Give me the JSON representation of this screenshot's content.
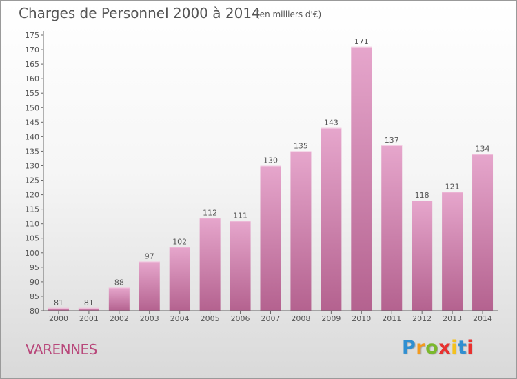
{
  "chart_data": {
    "type": "bar",
    "title": "Charges de Personnel 2000 à 2014",
    "subtitle": "(en milliers d'€)",
    "categories": [
      "2000",
      "2001",
      "2002",
      "2003",
      "2004",
      "2005",
      "2006",
      "2007",
      "2008",
      "2009",
      "2010",
      "2011",
      "2012",
      "2013",
      "2014"
    ],
    "values": [
      81,
      81,
      88,
      97,
      102,
      112,
      111,
      130,
      135,
      143,
      171,
      137,
      118,
      121,
      134
    ],
    "ylim": [
      80,
      175
    ],
    "yticks": [
      80,
      85,
      90,
      95,
      100,
      105,
      110,
      115,
      120,
      125,
      130,
      135,
      140,
      145,
      150,
      155,
      160,
      165,
      170,
      175
    ],
    "grid": false,
    "colors": {
      "bar_top": "#e6a6cc",
      "bar_bottom": "#b4628f",
      "text": "#555555"
    }
  },
  "footer": {
    "commune": "VARENNES",
    "logo_letters": [
      "P",
      "r",
      "o",
      "x",
      "i",
      "t",
      "i"
    ],
    "logo_colors": [
      "#2f8fd1",
      "#f39a1e",
      "#7bb82c",
      "#e8312f",
      "#f3c11e",
      "#2f8fd1",
      "#e8312f"
    ]
  }
}
